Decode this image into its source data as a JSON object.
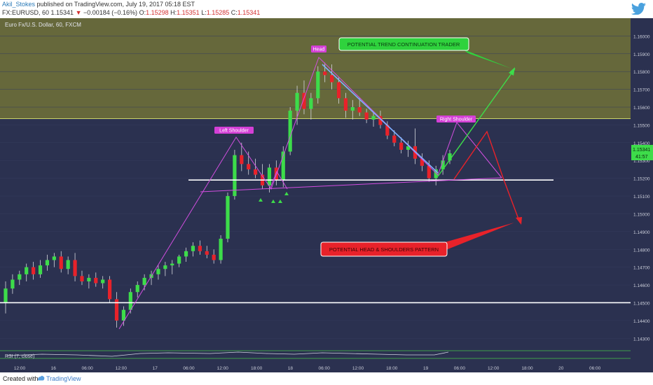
{
  "header": {
    "author": "Akil_Stokes",
    "published_text": " published on TradingView.com, July 19, 2017 05:18 EST",
    "symbol_line": "FX:EURUSD, 60  1.15341",
    "change_arrow": "▼",
    "change": " −0.00184 (−0.16%)",
    "ohlc_o_label": "  O:",
    "ohlc_o": "1.15298",
    "ohlc_h_label": " H:",
    "ohlc_h": "1.15351",
    "ohlc_l_label": " L:",
    "ohlc_l": "1.15285",
    "ohlc_c_label": " C:",
    "ohlc_c": "1.15341"
  },
  "footer": {
    "created_with": "Created with",
    "brand": "TradingView"
  },
  "colors": {
    "pane_bg": "#2b3150",
    "zone_fill": "#66683b",
    "bull": "#3ddc4a",
    "bear": "#e8222a",
    "pattern_line": "#d24ee0",
    "white_line": "#ffffff",
    "trend_line": "#7fb0ff"
  },
  "chart_data": {
    "type": "candlestick",
    "title": "Euro Fx/U.S. Dollar, 60, FXCM",
    "instrument": "FX:EURUSD",
    "timeframe": "60",
    "ylim": [
      1.1425,
      1.161
    ],
    "y_ticks": [
      "1.16000",
      "1.15900",
      "1.15800",
      "1.15700",
      "1.15600",
      "1.15500",
      "1.15400",
      "1.15300",
      "1.15200",
      "1.15100",
      "1.15000",
      "1.14900",
      "1.14800",
      "1.14700",
      "1.14600",
      "1.14500",
      "1.14400",
      "1.14300"
    ],
    "x_ticks": [
      "12:00",
      "16",
      "06:00",
      "12:00",
      "17",
      "06:00",
      "12:00",
      "18:00",
      "18",
      "06:00",
      "12:00",
      "18:00",
      "19",
      "06:00",
      "12:00",
      "18:00",
      "20",
      "06:00"
    ],
    "last_price": "1.15341",
    "last_price_sub": "41:57",
    "candles": [
      [
        1.145,
        1.1462,
        1.1444,
        1.1458
      ],
      [
        1.1458,
        1.1466,
        1.1455,
        1.1463
      ],
      [
        1.1463,
        1.1468,
        1.146,
        1.1466
      ],
      [
        1.1466,
        1.1472,
        1.1462,
        1.147
      ],
      [
        1.147,
        1.1473,
        1.1463,
        1.1466
      ],
      [
        1.1466,
        1.1474,
        1.1464,
        1.1471
      ],
      [
        1.1471,
        1.1477,
        1.1468,
        1.1474
      ],
      [
        1.1474,
        1.1478,
        1.147,
        1.1476
      ],
      [
        1.1476,
        1.1479,
        1.1467,
        1.1469
      ],
      [
        1.1469,
        1.1476,
        1.1466,
        1.1474
      ],
      [
        1.1474,
        1.1478,
        1.1462,
        1.1465
      ],
      [
        1.1465,
        1.1468,
        1.146,
        1.1462
      ],
      [
        1.1462,
        1.1466,
        1.1458,
        1.1464
      ],
      [
        1.1464,
        1.1467,
        1.1459,
        1.1461
      ],
      [
        1.1461,
        1.1465,
        1.1458,
        1.1463
      ],
      [
        1.1463,
        1.1465,
        1.145,
        1.1452
      ],
      [
        1.1452,
        1.1456,
        1.1436,
        1.144
      ],
      [
        1.144,
        1.1448,
        1.1437,
        1.1446
      ],
      [
        1.1446,
        1.1458,
        1.1444,
        1.1456
      ],
      [
        1.1456,
        1.1462,
        1.1453,
        1.146
      ],
      [
        1.146,
        1.1466,
        1.1457,
        1.1464
      ],
      [
        1.1464,
        1.1468,
        1.146,
        1.1466
      ],
      [
        1.1466,
        1.1471,
        1.1463,
        1.1469
      ],
      [
        1.1469,
        1.1473,
        1.1465,
        1.1471
      ],
      [
        1.1471,
        1.1474,
        1.1466,
        1.1472
      ],
      [
        1.1472,
        1.1477,
        1.147,
        1.1476
      ],
      [
        1.1476,
        1.1481,
        1.1473,
        1.1479
      ],
      [
        1.1479,
        1.1484,
        1.1476,
        1.1482
      ],
      [
        1.1482,
        1.1485,
        1.1477,
        1.1479
      ],
      [
        1.1479,
        1.1482,
        1.1475,
        1.1477
      ],
      [
        1.1477,
        1.148,
        1.1472,
        1.1474
      ],
      [
        1.1474,
        1.1488,
        1.1472,
        1.1486
      ],
      [
        1.1486,
        1.1512,
        1.1484,
        1.151
      ],
      [
        1.151,
        1.1536,
        1.1508,
        1.1533
      ],
      [
        1.1533,
        1.154,
        1.1524,
        1.1528
      ],
      [
        1.1528,
        1.1535,
        1.1522,
        1.1525
      ],
      [
        1.1525,
        1.1531,
        1.152,
        1.1522
      ],
      [
        1.1522,
        1.1528,
        1.1514,
        1.1516
      ],
      [
        1.1516,
        1.1528,
        1.1512,
        1.1526
      ],
      [
        1.1526,
        1.153,
        1.1516,
        1.1519
      ],
      [
        1.1519,
        1.1538,
        1.1515,
        1.1535
      ],
      [
        1.1535,
        1.156,
        1.1533,
        1.1558
      ],
      [
        1.1558,
        1.1572,
        1.155,
        1.1568
      ],
      [
        1.1568,
        1.1575,
        1.1556,
        1.1559
      ],
      [
        1.1559,
        1.1568,
        1.1553,
        1.1565
      ],
      [
        1.1565,
        1.1583,
        1.1562,
        1.158
      ],
      [
        1.158,
        1.1585,
        1.1574,
        1.1578
      ],
      [
        1.1578,
        1.1584,
        1.157,
        1.1574
      ],
      [
        1.1574,
        1.1577,
        1.1562,
        1.1565
      ],
      [
        1.1565,
        1.1568,
        1.1554,
        1.1558
      ],
      [
        1.1558,
        1.1564,
        1.1553,
        1.156
      ],
      [
        1.156,
        1.1565,
        1.1555,
        1.1557
      ],
      [
        1.1557,
        1.1559,
        1.1551,
        1.1553
      ],
      [
        1.1553,
        1.1557,
        1.1549,
        1.1555
      ],
      [
        1.1555,
        1.1558,
        1.1548,
        1.155
      ],
      [
        1.155,
        1.1552,
        1.1542,
        1.1544
      ],
      [
        1.1544,
        1.1547,
        1.1538,
        1.154
      ],
      [
        1.154,
        1.1543,
        1.1534,
        1.1536
      ],
      [
        1.1536,
        1.1541,
        1.1532,
        1.1538
      ],
      [
        1.1538,
        1.1548,
        1.1528,
        1.1531
      ],
      [
        1.1531,
        1.1534,
        1.1524,
        1.1527
      ],
      [
        1.1527,
        1.153,
        1.1518,
        1.152
      ],
      [
        1.152,
        1.1527,
        1.1516,
        1.1525
      ],
      [
        1.1525,
        1.1533,
        1.1522,
        1.153
      ],
      [
        1.153,
        1.1536,
        1.1528,
        1.1534
      ]
    ],
    "annotations": {
      "head_label": "Head",
      "left_shoulder_label": "Left Shoulder",
      "right_shoulder_label": "Right Shoulder",
      "trend_callout": "POTENTIAL TREND CONTINUATION TRADER",
      "hs_callout": "POTENTIAL HEAD & SHOULDERS PATTERN"
    },
    "indicator": {
      "label": "RSI (7, close)"
    }
  }
}
